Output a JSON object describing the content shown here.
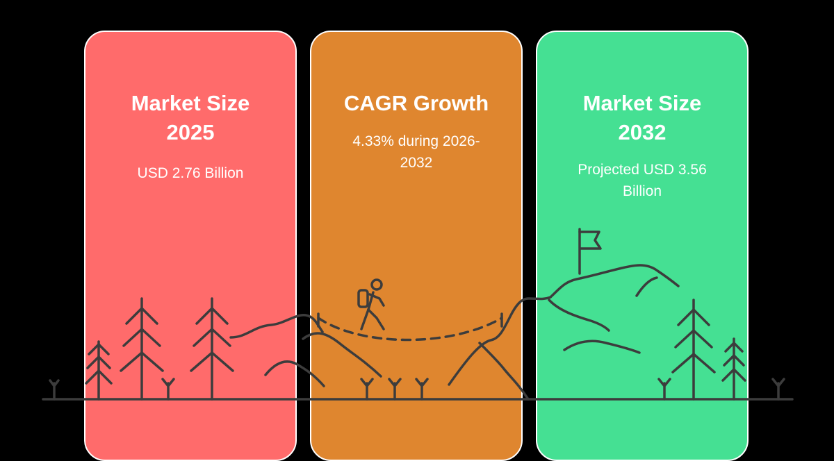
{
  "colors": {
    "background": "#000000",
    "card_red": "#ff6b6b",
    "card_orange": "#df862f",
    "card_green": "#45e093",
    "line_art": "#3c3c3c"
  },
  "cards": [
    {
      "title_lines": [
        "Market Size",
        "2025"
      ],
      "text_lines": [
        "USD 2.76 Billion"
      ]
    },
    {
      "title_lines": [
        "CAGR Growth"
      ],
      "text_lines": [
        "4.33% during 2026-",
        "2032"
      ]
    },
    {
      "title_lines": [
        "Market Size",
        "2032"
      ],
      "text_lines": [
        "Projected USD 3.56",
        "Billion"
      ]
    }
  ],
  "illustration_icons": [
    "tree-icon",
    "mountain-icon",
    "hiker-icon",
    "flag-icon",
    "grass-sprout-icon"
  ]
}
